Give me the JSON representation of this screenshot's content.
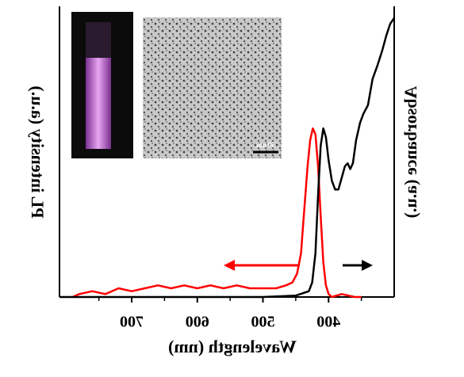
{
  "chart_data": {
    "type": "line",
    "xlabel": "Wavelength (nm)",
    "ylabel": "PL intensity (a.u.)",
    "y2label": "Absorbance (a.u.)",
    "xlim": [
      300,
      810
    ],
    "xticks": [
      400,
      500,
      600,
      700
    ],
    "xminorticks": [
      350,
      450,
      550,
      650,
      750
    ],
    "ylim": [
      0,
      1
    ],
    "y2lim": [
      0,
      1
    ],
    "inset_label": "50 nm",
    "series": [
      {
        "name": "PL",
        "color": "#ff0000",
        "x": [
          790,
          780,
          760,
          740,
          720,
          700,
          680,
          660,
          640,
          620,
          600,
          580,
          560,
          540,
          520,
          500,
          480,
          465,
          455,
          448,
          442,
          437,
          432,
          428,
          424,
          420,
          416,
          412,
          408,
          404,
          400,
          395,
          380,
          360,
          350
        ],
        "values": [
          0.0,
          0.01,
          0.02,
          0.01,
          0.03,
          0.02,
          0.03,
          0.04,
          0.03,
          0.04,
          0.03,
          0.04,
          0.03,
          0.04,
          0.03,
          0.03,
          0.03,
          0.04,
          0.05,
          0.08,
          0.15,
          0.3,
          0.45,
          0.54,
          0.58,
          0.56,
          0.45,
          0.28,
          0.12,
          0.04,
          0.01,
          0.0,
          0.01,
          0.0,
          0.0
        ]
      },
      {
        "name": "Absorbance",
        "color": "#000000",
        "axis": "y2",
        "x": [
          810,
          700,
          600,
          500,
          450,
          430,
          425,
          420,
          416,
          412,
          408,
          404,
          400,
          395,
          390,
          385,
          380,
          375,
          371,
          367,
          363,
          358,
          352,
          347,
          340,
          333,
          325,
          318,
          312,
          306,
          300
        ],
        "values": [
          0,
          0,
          0,
          0,
          0.005,
          0.02,
          0.05,
          0.15,
          0.35,
          0.52,
          0.58,
          0.55,
          0.47,
          0.4,
          0.37,
          0.37,
          0.41,
          0.45,
          0.46,
          0.44,
          0.46,
          0.54,
          0.6,
          0.63,
          0.66,
          0.75,
          0.8,
          0.85,
          0.9,
          0.94,
          0.96
        ]
      }
    ]
  }
}
